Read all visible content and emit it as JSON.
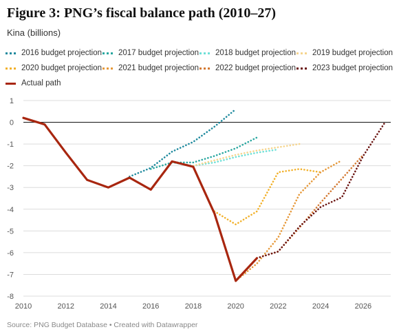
{
  "figure": {
    "title": "Figure 3: PNG’s fiscal balance path (2010–27)",
    "subtitle": "Kina (billions)",
    "source": "Source: PNG Budget Database • Created with Datawrapper"
  },
  "chart_data": {
    "type": "line",
    "title": "Figure 3: PNG’s fiscal balance path (2010–27)",
    "ylabel": "Kina (billions)",
    "xlim": [
      2010,
      2027.3
    ],
    "ylim": [
      -8,
      1
    ],
    "x_ticks": [
      2010,
      2012,
      2014,
      2016,
      2018,
      2020,
      2022,
      2024,
      2026
    ],
    "y_ticks": [
      1,
      0,
      -1,
      -2,
      -3,
      -4,
      -5,
      -6,
      -7,
      -8
    ],
    "grid": true,
    "legend_position": "top",
    "series": [
      {
        "name": "2016 budget projection",
        "color": "#1f8a9e",
        "style": "dotted",
        "points": [
          [
            2015,
            -2.5
          ],
          [
            2016,
            -2.1
          ],
          [
            2017,
            -1.35
          ],
          [
            2018,
            -0.9
          ],
          [
            2019,
            -0.2
          ],
          [
            2020,
            0.6
          ]
        ]
      },
      {
        "name": "2017 budget projection",
        "color": "#2aa7a0",
        "style": "dotted",
        "points": [
          [
            2016,
            -2.15
          ],
          [
            2017,
            -1.85
          ],
          [
            2018,
            -1.85
          ],
          [
            2019,
            -1.55
          ],
          [
            2020,
            -1.2
          ],
          [
            2021,
            -0.7
          ]
        ]
      },
      {
        "name": "2018 budget projection",
        "color": "#6fe0d8",
        "style": "dotted",
        "points": [
          [
            2017,
            -1.85
          ],
          [
            2018,
            -2.0
          ],
          [
            2019,
            -1.85
          ],
          [
            2020,
            -1.6
          ],
          [
            2021,
            -1.4
          ],
          [
            2022,
            -1.25
          ]
        ]
      },
      {
        "name": "2019 budget projection",
        "color": "#f6d58e",
        "style": "dotted",
        "points": [
          [
            2018,
            -2.0
          ],
          [
            2019,
            -1.75
          ],
          [
            2020,
            -1.5
          ],
          [
            2021,
            -1.3
          ],
          [
            2022,
            -1.15
          ],
          [
            2023,
            -1.0
          ]
        ]
      },
      {
        "name": "2020 budget projection",
        "color": "#f2b12b",
        "style": "dotted",
        "points": [
          [
            2019,
            -4.1
          ],
          [
            2020,
            -4.7
          ],
          [
            2021,
            -4.1
          ],
          [
            2022,
            -2.3
          ],
          [
            2023,
            -2.15
          ],
          [
            2024,
            -2.3
          ]
        ]
      },
      {
        "name": "2021 budget projection",
        "color": "#e6993a",
        "style": "dotted",
        "points": [
          [
            2020,
            -7.3
          ],
          [
            2021,
            -6.5
          ],
          [
            2022,
            -5.3
          ],
          [
            2023,
            -3.3
          ],
          [
            2024,
            -2.3
          ],
          [
            2025,
            -1.75
          ]
        ]
      },
      {
        "name": "2022 budget projection",
        "color": "#d47a33",
        "style": "dotted",
        "points": [
          [
            2021,
            -6.25
          ],
          [
            2022,
            -5.95
          ],
          [
            2023,
            -4.85
          ],
          [
            2024,
            -3.7
          ],
          [
            2025,
            -2.6
          ],
          [
            2026,
            -1.5
          ]
        ]
      },
      {
        "name": "2023 budget projection",
        "color": "#6b1512",
        "style": "dotted",
        "points": [
          [
            2021,
            -6.25
          ],
          [
            2022,
            -5.95
          ],
          [
            2023,
            -4.8
          ],
          [
            2024,
            -3.9
          ],
          [
            2025,
            -3.45
          ],
          [
            2026,
            -1.55
          ],
          [
            2027,
            -0.05
          ]
        ]
      },
      {
        "name": "Actual path",
        "color": "#a8260f",
        "style": "solid",
        "points": [
          [
            2010,
            0.2
          ],
          [
            2011,
            -0.1
          ],
          [
            2012,
            -1.4
          ],
          [
            2013,
            -2.65
          ],
          [
            2014,
            -3.0
          ],
          [
            2015,
            -2.55
          ],
          [
            2016,
            -3.1
          ],
          [
            2017,
            -1.8
          ],
          [
            2018,
            -2.05
          ],
          [
            2019,
            -4.2
          ],
          [
            2020,
            -7.3
          ],
          [
            2021,
            -6.25
          ]
        ]
      }
    ]
  }
}
